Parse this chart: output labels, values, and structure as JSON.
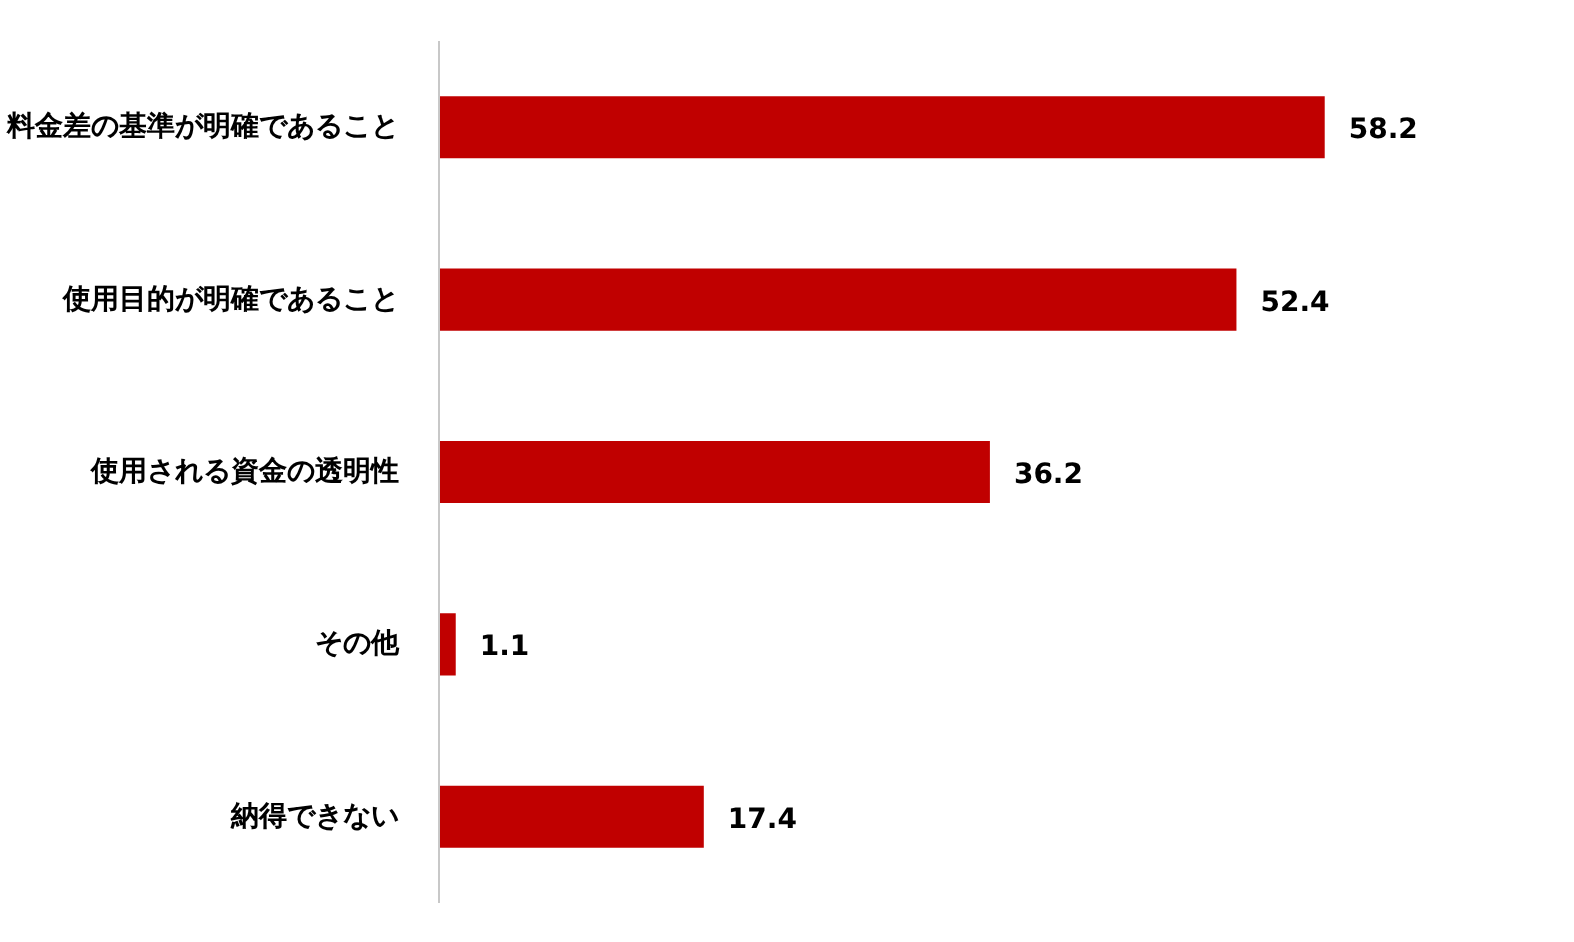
{
  "chart_data": {
    "type": "bar",
    "orientation": "horizontal",
    "categories": [
      "料金差の基準が明確であること",
      "使用目的が明確であること",
      "使用される資金の透明性",
      "その他",
      "納得できない"
    ],
    "values": [
      58.2,
      52.4,
      36.2,
      1.1,
      17.4
    ],
    "color": "#c00000",
    "data_labels": true,
    "grid": false
  }
}
